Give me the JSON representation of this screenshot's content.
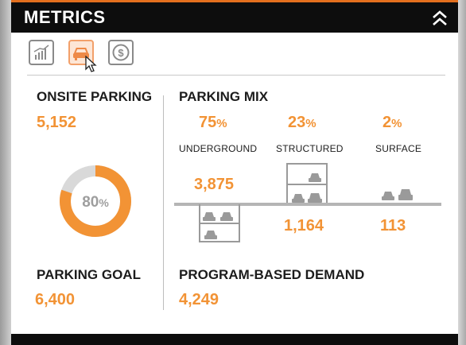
{
  "header": {
    "title": "METRICS"
  },
  "toolbar": {
    "icons": [
      "chart-icon",
      "car-icon",
      "dollar-icon"
    ],
    "active": "car-icon"
  },
  "onsite": {
    "label": "ONSITE PARKING",
    "value": "5,152"
  },
  "goal": {
    "label": "PARKING GOAL",
    "value": "6,400"
  },
  "donut": {
    "percent_value": "80",
    "percent_unit": "%",
    "fraction": 0.8
  },
  "mix": {
    "label": "PARKING MIX",
    "underground": {
      "pct": "75",
      "unit": "%",
      "label": "UNDERGROUND",
      "count": "3,875"
    },
    "structured": {
      "pct": "23",
      "unit": "%",
      "label": "STRUCTURED",
      "count": "1,164"
    },
    "surface": {
      "pct": "2",
      "unit": "%",
      "label": "SURFACE",
      "count": "113"
    }
  },
  "demand": {
    "label": "PROGRAM-BASED DEMAND",
    "value": "4,249"
  },
  "colors": {
    "accent": "#f29335",
    "header_bg": "#0d0d0d",
    "track": "#d9d9d9"
  }
}
